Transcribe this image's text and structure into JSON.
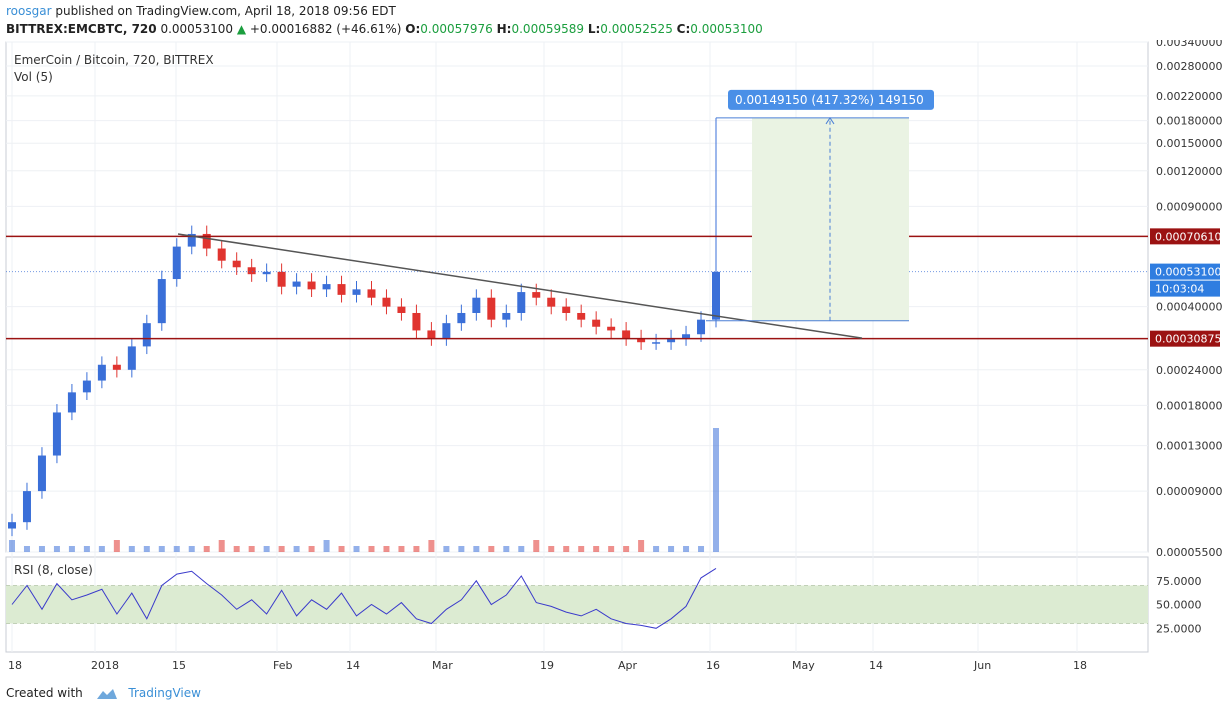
{
  "header": {
    "user": "roosgar",
    "published_text": "published on TradingView.com, April 18, 2018 09:56 EDT",
    "symbol": "BITTREX:EMCBTC, 720",
    "last": "0.00053100",
    "change": "+0.00016882 (+46.61%)",
    "o_label": "O:",
    "o_value": "0.00057976",
    "h_label": "H:",
    "h_value": "0.00059589",
    "l_label": "L:",
    "l_value": "0.00052525",
    "c_label": "C:",
    "c_value": "0.00053100"
  },
  "legend": {
    "main": "EmerCoin / Bitcoin, 720, BITTREX",
    "vol": "Vol (5)",
    "rsi": "RSI (8, close)"
  },
  "footer": {
    "created_with": "Created with",
    "brand": "TradingView"
  },
  "colors": {
    "up": "#3a6fd8",
    "down": "#e0342f",
    "rsi_line": "#3a3acb",
    "level": "#9b1212",
    "projection": "#4a7fd6",
    "rsi_band": "#dcebd2"
  },
  "chart_data": {
    "type": "candlestick",
    "title": "EmerCoin / Bitcoin, 720, BITTREX",
    "x_ticks": [
      "18",
      "2018",
      "15",
      "Feb",
      "14",
      "Mar",
      "19",
      "Apr",
      "16",
      "May",
      "14",
      "Jun",
      "18"
    ],
    "price_ticks": [
      "0.00340000",
      "0.00280000",
      "0.00220000",
      "0.00180000",
      "0.00150000",
      "0.00120000",
      "0.00090000",
      "0.00040000",
      "0.00024000",
      "0.00018000",
      "0.00013000",
      "0.00009000",
      "0.00005500"
    ],
    "scale": "log",
    "price_labels": [
      {
        "value": "0.00070610",
        "kind": "resistance"
      },
      {
        "value": "0.00053100",
        "kind": "last"
      },
      {
        "value": "10:03:04",
        "kind": "countdown"
      },
      {
        "value": "0.00030875",
        "kind": "support"
      }
    ],
    "series": [
      {
        "name": "Price (approx. closes)",
        "values": [
          7e-05,
          9e-05,
          0.00012,
          0.00017,
          0.0002,
          0.00022,
          0.00025,
          0.00024,
          0.00029,
          0.00035,
          0.0005,
          0.00065,
          0.00072,
          0.00064,
          0.00058,
          0.00055,
          0.00052,
          0.00053,
          0.00047,
          0.00049,
          0.00046,
          0.00048,
          0.00044,
          0.00046,
          0.00043,
          0.0004,
          0.00038,
          0.00033,
          0.00031,
          0.00035,
          0.00038,
          0.00043,
          0.00036,
          0.00038,
          0.00045,
          0.00043,
          0.0004,
          0.00038,
          0.00036,
          0.00034,
          0.00033,
          0.00031,
          0.0003,
          0.0003,
          0.00031,
          0.00032,
          0.00036,
          0.00053
        ]
      }
    ],
    "horizontal_levels": [
      0.0007061,
      0.00030875
    ],
    "trendline": {
      "from": {
        "date": "2018-01-15",
        "price": 0.00072
      },
      "to": {
        "date": "2018-05-14",
        "price": 0.00031
      }
    },
    "projection": {
      "label": "0.00149150 (417.32%) 149150",
      "base_price": 0.000357,
      "target_price": 0.00184
    },
    "volume": {
      "name": "Vol (5)",
      "note": "spike near Apr 16"
    },
    "rsi": {
      "name": "RSI (8, close)",
      "ticks": [
        "75.0000",
        "50.0000",
        "25.0000"
      ],
      "band": [
        30,
        70
      ],
      "values": [
        50,
        70,
        45,
        72,
        55,
        60,
        66,
        40,
        62,
        35,
        70,
        82,
        85,
        72,
        60,
        45,
        55,
        40,
        65,
        38,
        55,
        45,
        62,
        38,
        50,
        40,
        52,
        35,
        30,
        45,
        55,
        75,
        50,
        60,
        80,
        52,
        48,
        42,
        38,
        45,
        35,
        30,
        28,
        25,
        35,
        48,
        78,
        88
      ]
    }
  }
}
